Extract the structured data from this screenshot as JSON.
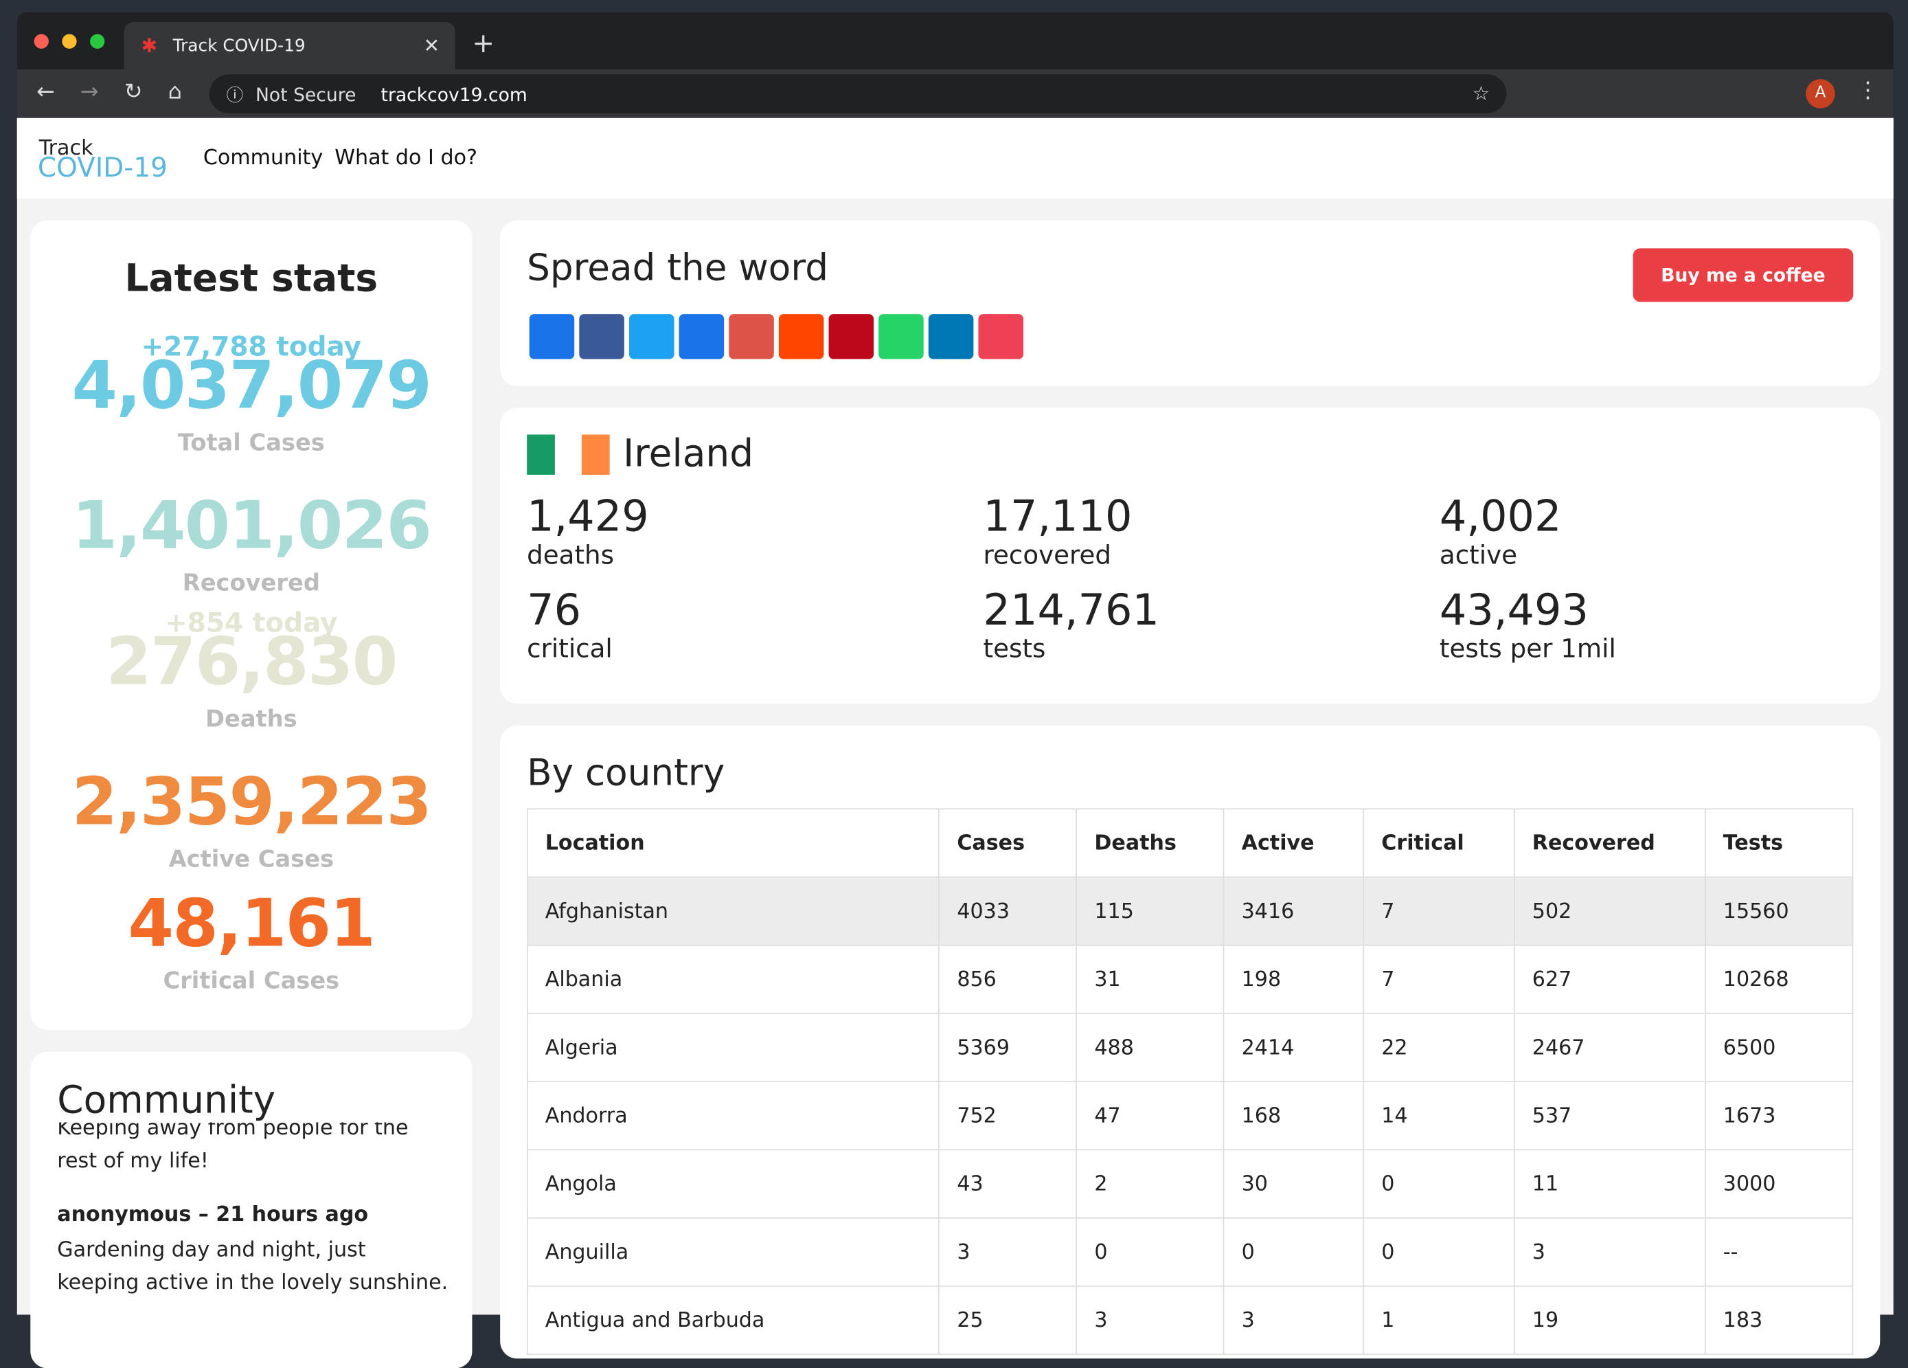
{
  "browser": {
    "tab_title": "Track COVID-19",
    "security": "Not Secure",
    "url": "trackcov19.com",
    "avatar": "A"
  },
  "nav": {
    "logo_top": "Track",
    "logo_bottom": "COVID-19",
    "links": [
      "Community",
      "What do I do?"
    ]
  },
  "latest": {
    "title": "Latest stats",
    "items": [
      {
        "delta": "+27,788 today",
        "value": "4,037,079",
        "label": "Total Cases",
        "color": "#6ccbe3"
      },
      {
        "value": "1,401,026",
        "label": "Recovered",
        "color": "#a9dcd6"
      },
      {
        "delta": "+854 today",
        "value": "276,830",
        "label": "Deaths",
        "color": "#e4e5d3"
      },
      {
        "value": "2,359,223",
        "label": "Active Cases",
        "color": "#f08a3e"
      },
      {
        "value": "48,161",
        "label": "Critical Cases",
        "color": "#f26a26"
      }
    ]
  },
  "community": {
    "title": "Community",
    "posts": [
      {
        "text": "Keeping away from people for the rest of my life!"
      },
      {
        "author": "anonymous – 21 hours ago",
        "text": "Gardening day and night, just keeping active in the lovely sunshine."
      }
    ]
  },
  "share": {
    "title": "Spread the word",
    "coffee": "Buy me a coffee"
  },
  "country": {
    "name": "Ireland",
    "stats": [
      {
        "value": "1,429",
        "label": "deaths"
      },
      {
        "value": "17,110",
        "label": "recovered"
      },
      {
        "value": "4,002",
        "label": "active"
      },
      {
        "value": "76",
        "label": "critical"
      },
      {
        "value": "214,761",
        "label": "tests"
      },
      {
        "value": "43,493",
        "label": "tests per 1mil"
      }
    ]
  },
  "table": {
    "title": "By country",
    "columns": [
      "Location",
      "Cases",
      "Deaths",
      "Active",
      "Critical",
      "Recovered",
      "Tests"
    ],
    "rows": [
      [
        "Afghanistan",
        "4033",
        "115",
        "3416",
        "7",
        "502",
        "15560"
      ],
      [
        "Albania",
        "856",
        "31",
        "198",
        "7",
        "627",
        "10268"
      ],
      [
        "Algeria",
        "5369",
        "488",
        "2414",
        "22",
        "2467",
        "6500"
      ],
      [
        "Andorra",
        "752",
        "47",
        "168",
        "14",
        "537",
        "1673"
      ],
      [
        "Angola",
        "43",
        "2",
        "30",
        "0",
        "11",
        "3000"
      ],
      [
        "Anguilla",
        "3",
        "0",
        "0",
        "0",
        "3",
        "--"
      ],
      [
        "Antigua and Barbuda",
        "25",
        "3",
        "3",
        "1",
        "19",
        "183"
      ]
    ]
  }
}
